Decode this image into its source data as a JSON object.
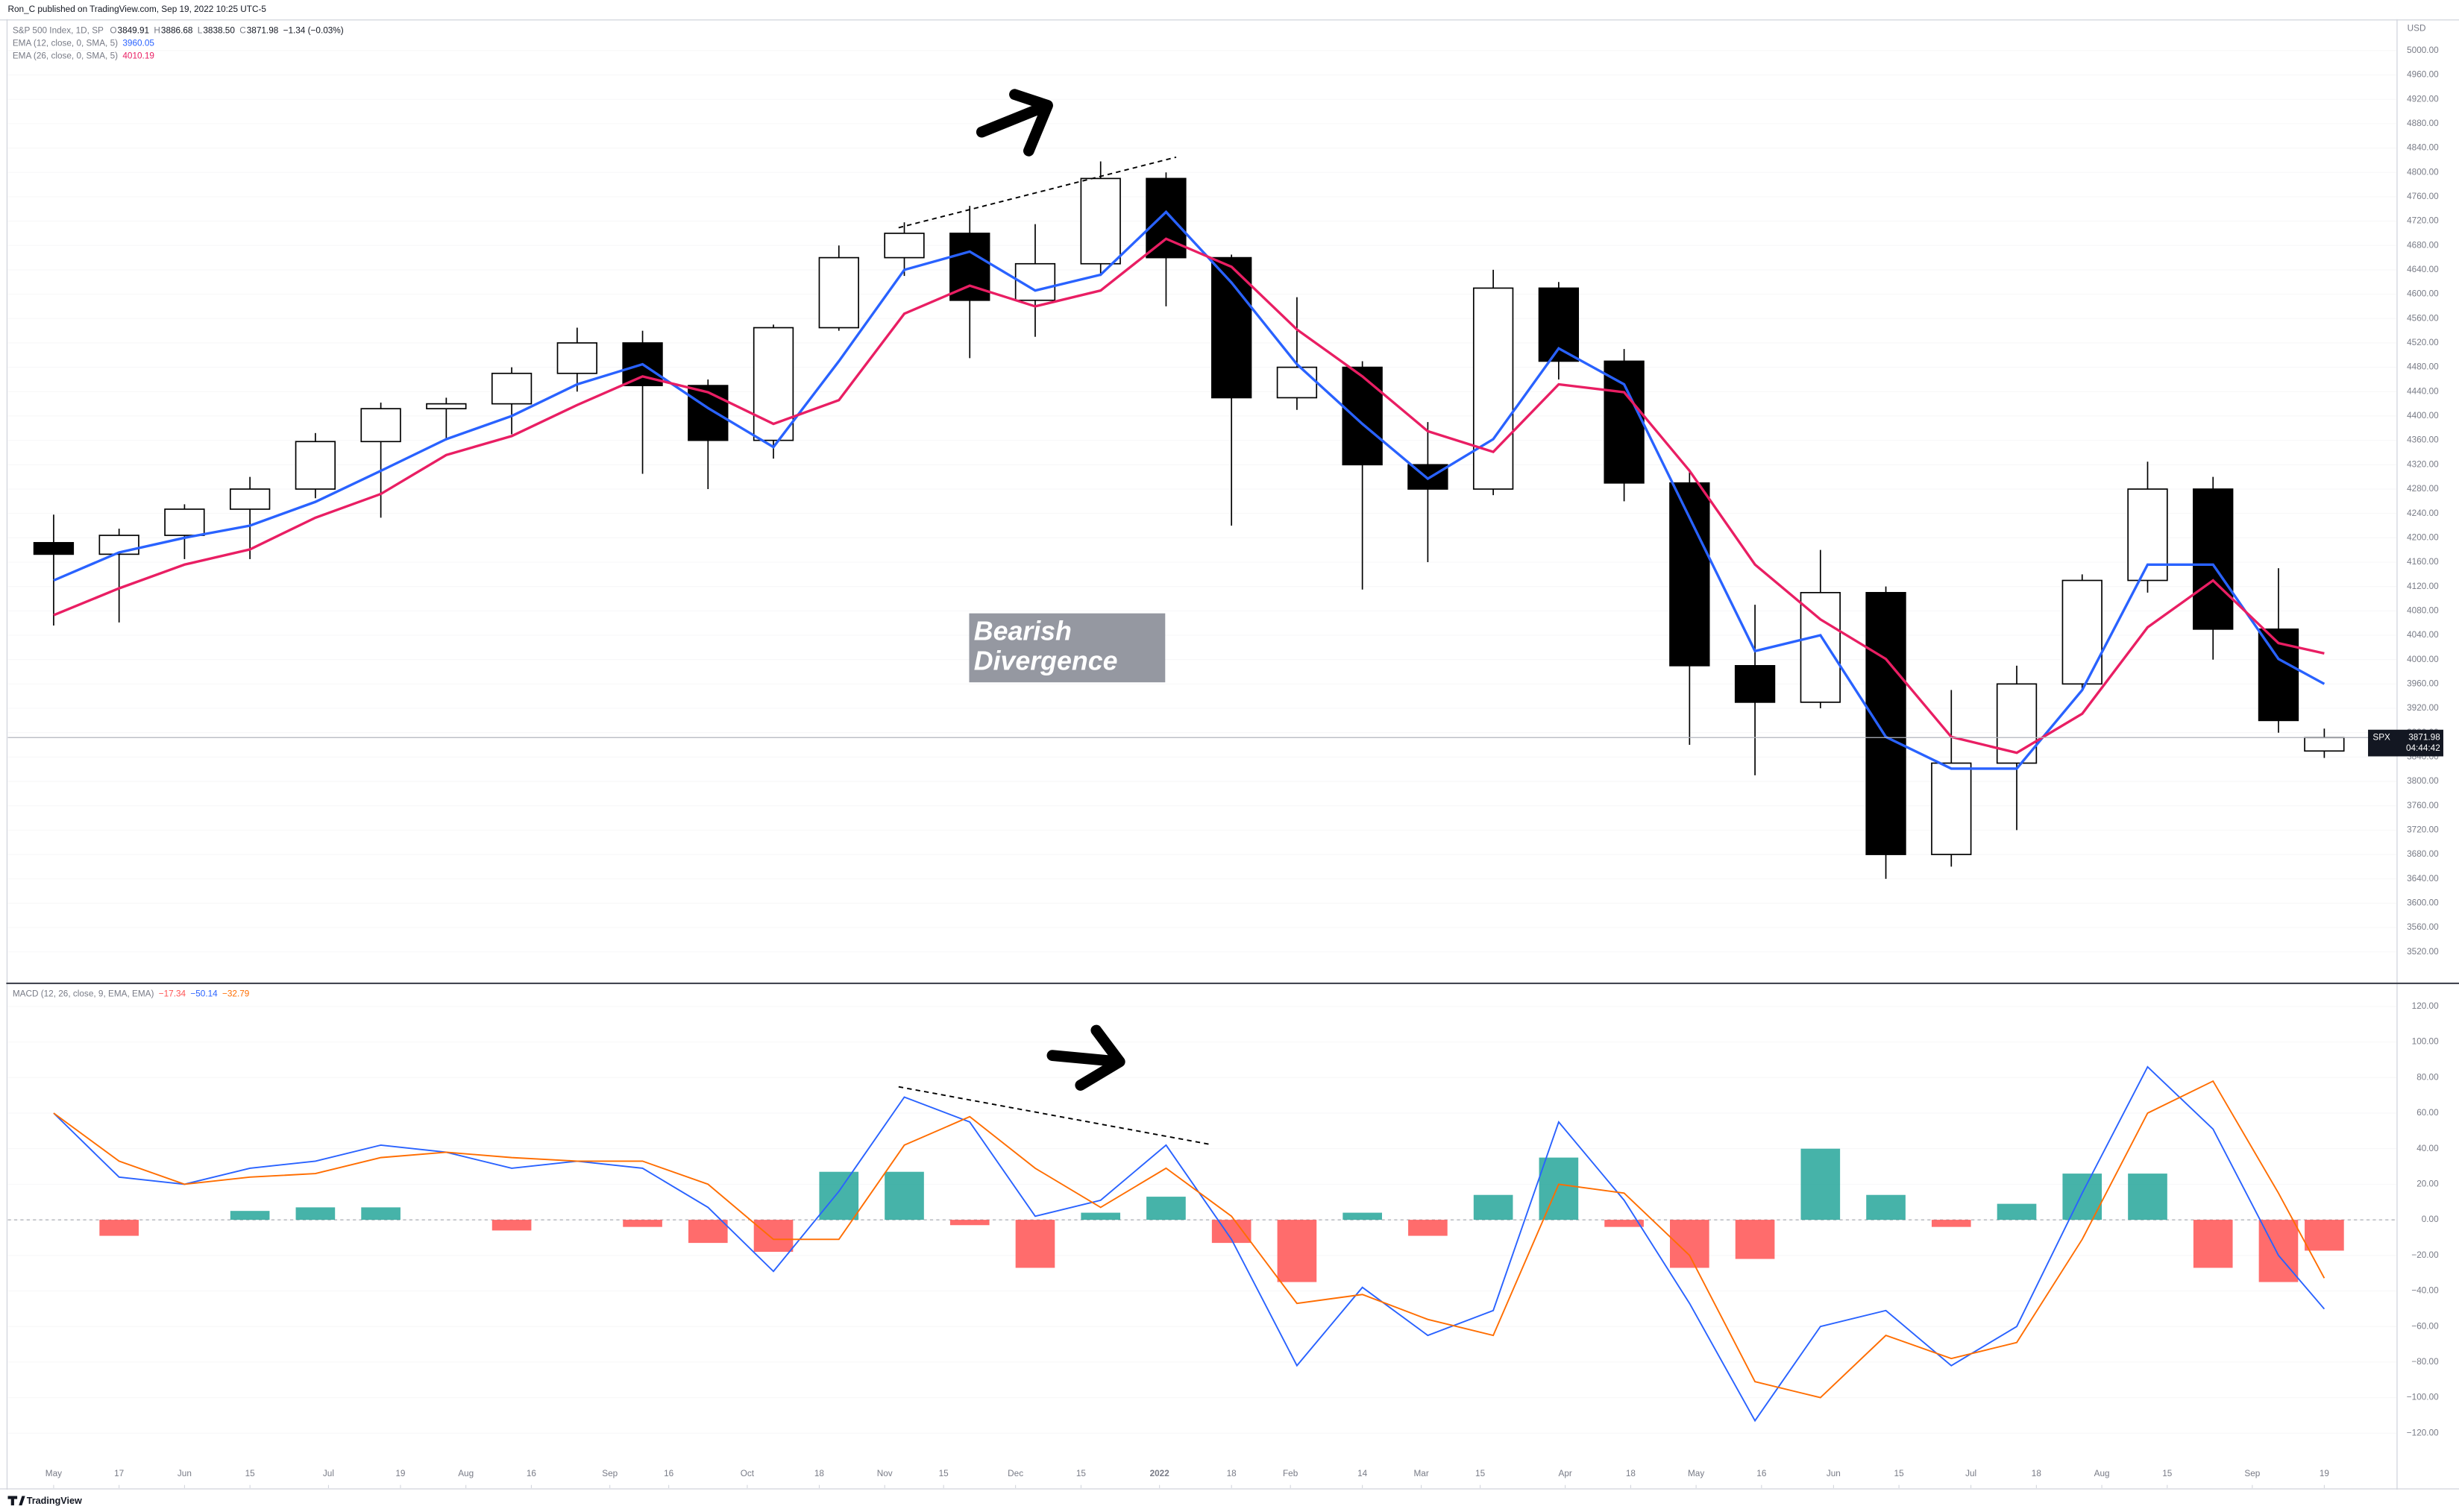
{
  "header": "Ron_C published on TradingView.com, Sep 19, 2022 10:25 UTC-5",
  "footer": "TradingView",
  "annotation": "Bearish Divergence",
  "chart_data": [
    {
      "type": "candlestick",
      "title": "S&P 500 Index, 1D, SP",
      "symbol": "SPX",
      "countdown": "04:44:42",
      "y_unit": "USD",
      "change": "−1.34 (−0.03%)",
      "last_low_label": "3838.50",
      "ohlc_keys": [
        "O",
        "H",
        "L",
        "C"
      ],
      "up_color": "#ffffff",
      "down_color": "#000000",
      "wick_color": "#000000",
      "x": [
        0,
        10,
        20,
        30,
        40,
        50,
        60,
        70,
        80,
        90,
        100,
        110,
        120,
        130,
        140,
        150,
        160,
        170,
        180,
        190,
        200,
        210,
        220,
        230,
        240,
        250,
        260,
        270,
        280,
        290,
        300,
        310,
        320,
        330,
        340,
        347
      ],
      "open": [
        4192,
        4173,
        4204,
        4247,
        4280,
        4358,
        4412,
        4420,
        4470,
        4520,
        4450,
        4360,
        4545,
        4660,
        4700,
        4590,
        4650,
        4790,
        4660,
        4430,
        4480,
        4320,
        4280,
        4610,
        4490,
        4290,
        3990,
        3930,
        4110,
        3680,
        3830,
        3960,
        4130,
        4280,
        4050,
        3849.91
      ],
      "high": [
        4238,
        4215,
        4255,
        4300,
        4372,
        4422,
        4430,
        4480,
        4545,
        4540,
        4460,
        4550,
        4680,
        4718,
        4745,
        4715,
        4818,
        4800,
        4665,
        4595,
        4490,
        4390,
        4640,
        4620,
        4510,
        4310,
        4090,
        4180,
        4120,
        3950,
        3990,
        4140,
        4325,
        4300,
        4150,
        3886.68
      ],
      "low": [
        4056,
        4061,
        4165,
        4165,
        4265,
        4233,
        4360,
        4370,
        4440,
        4305,
        4280,
        4330,
        4540,
        4630,
        4495,
        4530,
        4630,
        4580,
        4220,
        4410,
        4115,
        4160,
        4270,
        4460,
        4260,
        3860,
        3810,
        3920,
        3640,
        3660,
        3720,
        3950,
        4110,
        4000,
        3880,
        3838.5
      ],
      "close": [
        4173,
        4204,
        4247,
        4280,
        4358,
        4412,
        4420,
        4470,
        4520,
        4450,
        4360,
        4545,
        4660,
        4700,
        4590,
        4650,
        4790,
        4660,
        4430,
        4480,
        4320,
        4280,
        4610,
        4490,
        4290,
        3990,
        3930,
        4110,
        3680,
        3830,
        3960,
        4130,
        4280,
        4050,
        3900,
        3871.98
      ],
      "series": [
        {
          "name": "EMA (12, close, 0, SMA, 5)",
          "color": "#2962ff",
          "values": [
            4130,
            4176,
            4200,
            4220,
            4259,
            4310,
            4362,
            4400,
            4452,
            4485,
            4413,
            4349,
            4490,
            4640,
            4670,
            4606,
            4632,
            4735,
            4619,
            4485,
            4387,
            4297,
            4362,
            4511,
            4452,
            4233,
            4014,
            4040,
            3873,
            3821,
            3821,
            3950,
            4156,
            4156,
            4001,
            3960.05
          ]
        },
        {
          "name": "EMA (26, close, 0, SMA, 5)",
          "color": "#e91e63",
          "values": [
            4073,
            4117,
            4156,
            4181,
            4233,
            4272,
            4336,
            4367,
            4418,
            4465,
            4439,
            4387,
            4426,
            4568,
            4614,
            4580,
            4606,
            4691,
            4645,
            4542,
            4465,
            4375,
            4341,
            4452,
            4439,
            4310,
            4156,
            4066,
            4001,
            3873,
            3847,
            3911,
            4053,
            4130,
            4027,
            4010.19
          ]
        }
      ],
      "xlim": [
        -7,
        358
      ],
      "xticks": [
        {
          "value": 0,
          "label": "May"
        },
        {
          "value": 10,
          "label": "17"
        },
        {
          "value": 20,
          "label": "Jun"
        },
        {
          "value": 30,
          "label": "15"
        },
        {
          "value": 42,
          "label": "Jul"
        },
        {
          "value": 53,
          "label": "19"
        },
        {
          "value": 63,
          "label": "Aug"
        },
        {
          "value": 73,
          "label": "16"
        },
        {
          "value": 85,
          "label": "Sep"
        },
        {
          "value": 94,
          "label": "16"
        },
        {
          "value": 106,
          "label": "Oct"
        },
        {
          "value": 117,
          "label": "18"
        },
        {
          "value": 127,
          "label": "Nov"
        },
        {
          "value": 136,
          "label": "15"
        },
        {
          "value": 147,
          "label": "Dec"
        },
        {
          "value": 157,
          "label": "15"
        },
        {
          "value": 169,
          "label": "2022"
        },
        {
          "value": 180,
          "label": "18"
        },
        {
          "value": 189,
          "label": "Feb"
        },
        {
          "value": 200,
          "label": "14"
        },
        {
          "value": 209,
          "label": "Mar"
        },
        {
          "value": 218,
          "label": "15"
        },
        {
          "value": 231,
          "label": "Apr"
        },
        {
          "value": 241,
          "label": "18"
        },
        {
          "value": 251,
          "label": "May"
        },
        {
          "value": 261,
          "label": "16"
        },
        {
          "value": 272,
          "label": "Jun"
        },
        {
          "value": 282,
          "label": "15"
        },
        {
          "value": 293,
          "label": "Jul"
        },
        {
          "value": 303,
          "label": "18"
        },
        {
          "value": 313,
          "label": "Aug"
        },
        {
          "value": 323,
          "label": "15"
        },
        {
          "value": 336,
          "label": "Sep"
        },
        {
          "value": 347,
          "label": "19"
        }
      ],
      "ylim": [
        3471,
        5049
      ],
      "yticks": [
        {
          "value": 5000,
          "label": "5000.00"
        },
        {
          "value": 4960,
          "label": "4960.00"
        },
        {
          "value": 4920,
          "label": "4920.00"
        },
        {
          "value": 4880,
          "label": "4880.00"
        },
        {
          "value": 4840,
          "label": "4840.00"
        },
        {
          "value": 4800,
          "label": "4800.00"
        },
        {
          "value": 4760,
          "label": "4760.00"
        },
        {
          "value": 4720,
          "label": "4720.00"
        },
        {
          "value": 4680,
          "label": "4680.00"
        },
        {
          "value": 4640,
          "label": "4640.00"
        },
        {
          "value": 4600,
          "label": "4600.00"
        },
        {
          "value": 4560,
          "label": "4560.00"
        },
        {
          "value": 4520,
          "label": "4520.00"
        },
        {
          "value": 4480,
          "label": "4480.00"
        },
        {
          "value": 4440,
          "label": "4440.00"
        },
        {
          "value": 4400,
          "label": "4400.00"
        },
        {
          "value": 4360,
          "label": "4360.00"
        },
        {
          "value": 4320,
          "label": "4320.00"
        },
        {
          "value": 4280,
          "label": "4280.00"
        },
        {
          "value": 4240,
          "label": "4240.00"
        },
        {
          "value": 4200,
          "label": "4200.00"
        },
        {
          "value": 4160,
          "label": "4160.00"
        },
        {
          "value": 4120,
          "label": "4120.00"
        },
        {
          "value": 4080,
          "label": "4080.00"
        },
        {
          "value": 4040,
          "label": "4040.00"
        },
        {
          "value": 4000,
          "label": "4000.00"
        },
        {
          "value": 3960,
          "label": "3960.00"
        },
        {
          "value": 3920,
          "label": "3920.00"
        },
        {
          "value": 3880,
          "label": "3880.00"
        },
        {
          "value": 3840,
          "label": "3840.00"
        },
        {
          "value": 3800,
          "label": "3800.00"
        },
        {
          "value": 3760,
          "label": "3760.00"
        },
        {
          "value": 3720,
          "label": "3720.00"
        },
        {
          "value": 3680,
          "label": "3680.00"
        },
        {
          "value": 3640,
          "label": "3640.00"
        },
        {
          "value": 3600,
          "label": "3600.00"
        },
        {
          "value": 3560,
          "label": "3560.00"
        },
        {
          "value": 3520,
          "label": "3520.00"
        }
      ],
      "grid": true
    },
    {
      "type": "macd",
      "title": "MACD (12, 26, close, 9, EMA, EMA)",
      "histogram": {
        "up_color": "#26a69a",
        "down_color": "#ff5252",
        "last_label": "−17.34",
        "values": [
          0,
          -9,
          0,
          5,
          7,
          7,
          0,
          -6,
          0,
          -4,
          -13,
          -18,
          27,
          27,
          -3,
          -27,
          4,
          13,
          -13,
          -35,
          4,
          -9,
          14,
          35,
          -4,
          -27,
          -22,
          40,
          14,
          -4,
          9,
          26,
          26,
          -27,
          -35,
          -17.34
        ]
      },
      "series": [
        {
          "color": "#2962ff",
          "last_label": "−50.14",
          "values": [
            60,
            24,
            20,
            29,
            33,
            42,
            38,
            29,
            33,
            29,
            7,
            -29,
            16,
            69,
            55,
            2,
            11,
            42,
            -11,
            -82,
            -38,
            -65,
            -51,
            55,
            11,
            -47,
            -113,
            -60,
            -51,
            -82,
            -60,
            15,
            86,
            51,
            -20,
            -50.14
          ]
        },
        {
          "color": "#ff6d00",
          "last_label": "−32.79",
          "values": [
            60,
            33,
            20,
            24,
            26,
            35,
            38,
            35,
            33,
            33,
            20,
            -11,
            -11,
            42,
            58,
            29,
            7,
            29,
            2,
            -47,
            -42,
            -56,
            -65,
            20,
            15,
            -20,
            -91,
            -100,
            -65,
            -78,
            -69,
            -11,
            60,
            78,
            15,
            -32.79
          ]
        }
      ],
      "ylim": [
        -150,
        133
      ],
      "yticks": [
        {
          "value": 120,
          "label": "120.00"
        },
        {
          "value": 100,
          "label": "100.00"
        },
        {
          "value": 80,
          "label": "80.00"
        },
        {
          "value": 60,
          "label": "60.00"
        },
        {
          "value": 40,
          "label": "40.00"
        },
        {
          "value": 20,
          "label": "20.00"
        },
        {
          "value": 0,
          "label": "0.00"
        },
        {
          "value": -20,
          "label": "−20.00"
        },
        {
          "value": -40,
          "label": "−40.00"
        },
        {
          "value": -60,
          "label": "−60.00"
        },
        {
          "value": -80,
          "label": "−80.00"
        },
        {
          "value": -100,
          "label": "−100.00"
        },
        {
          "value": -120,
          "label": "−120.00"
        }
      ],
      "grid": true
    }
  ]
}
